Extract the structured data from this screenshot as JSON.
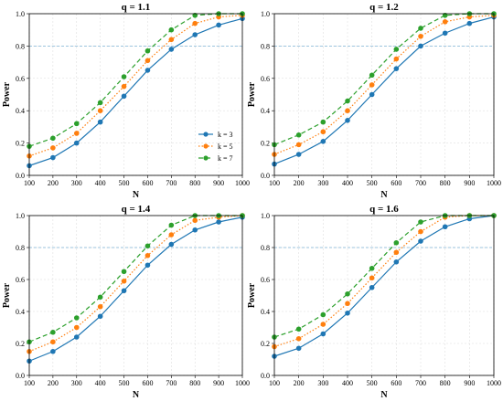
{
  "chart_data": [
    {
      "type": "line",
      "title": "q = 1.1",
      "xlabel": "N",
      "ylabel": "Power",
      "x": [
        100,
        200,
        300,
        400,
        500,
        600,
        700,
        800,
        900,
        1000
      ],
      "xlim": [
        100,
        1000
      ],
      "ylim": [
        0,
        1.0
      ],
      "xticks": [
        "100",
        "200",
        "300",
        "400",
        "500",
        "600",
        "700",
        "800",
        "900",
        "1000"
      ],
      "yticks": [
        "0.0",
        "0.2",
        "0.4",
        "0.6",
        "0.8",
        "1.0"
      ],
      "reference_line": 0.8,
      "grid": true,
      "legend": "inside-right",
      "series": [
        {
          "name": "k = 3",
          "values": [
            0.06,
            0.11,
            0.2,
            0.33,
            0.49,
            0.65,
            0.78,
            0.87,
            0.93,
            0.97
          ]
        },
        {
          "name": "k = 5",
          "values": [
            0.12,
            0.17,
            0.26,
            0.4,
            0.55,
            0.71,
            0.84,
            0.94,
            0.98,
            0.99
          ]
        },
        {
          "name": "k = 7",
          "values": [
            0.18,
            0.23,
            0.32,
            0.45,
            0.61,
            0.77,
            0.9,
            0.99,
            1.0,
            1.0
          ]
        }
      ]
    },
    {
      "type": "line",
      "title": "q = 1.2",
      "xlabel": "N",
      "ylabel": "Power",
      "x": [
        100,
        200,
        300,
        400,
        500,
        600,
        700,
        800,
        900,
        1000
      ],
      "xlim": [
        100,
        1000
      ],
      "ylim": [
        0,
        1.0
      ],
      "xticks": [
        "100",
        "200",
        "300",
        "400",
        "500",
        "600",
        "700",
        "800",
        "900",
        "1000"
      ],
      "yticks": [
        "0.0",
        "0.2",
        "0.4",
        "0.6",
        "0.8",
        "1.0"
      ],
      "reference_line": 0.8,
      "grid": true,
      "series": [
        {
          "name": "k = 3",
          "values": [
            0.07,
            0.13,
            0.21,
            0.34,
            0.5,
            0.66,
            0.8,
            0.88,
            0.94,
            0.98
          ]
        },
        {
          "name": "k = 5",
          "values": [
            0.13,
            0.19,
            0.27,
            0.4,
            0.56,
            0.72,
            0.86,
            0.95,
            0.98,
            0.99
          ]
        },
        {
          "name": "k = 7",
          "values": [
            0.19,
            0.25,
            0.33,
            0.46,
            0.62,
            0.78,
            0.91,
            0.99,
            1.0,
            1.0
          ]
        }
      ]
    },
    {
      "type": "line",
      "title": "q = 1.4",
      "xlabel": "N",
      "ylabel": "Power",
      "x": [
        100,
        200,
        300,
        400,
        500,
        600,
        700,
        800,
        900,
        1000
      ],
      "xlim": [
        100,
        1000
      ],
      "ylim": [
        0,
        1.0
      ],
      "xticks": [
        "100",
        "200",
        "300",
        "400",
        "500",
        "600",
        "700",
        "800",
        "900",
        "1000"
      ],
      "yticks": [
        "0.0",
        "0.2",
        "0.4",
        "0.6",
        "0.8",
        "1.0"
      ],
      "reference_line": 0.8,
      "grid": true,
      "series": [
        {
          "name": "k = 3",
          "values": [
            0.09,
            0.15,
            0.24,
            0.37,
            0.53,
            0.69,
            0.82,
            0.91,
            0.96,
            0.99
          ]
        },
        {
          "name": "k = 5",
          "values": [
            0.15,
            0.21,
            0.3,
            0.43,
            0.59,
            0.75,
            0.88,
            0.97,
            0.99,
            1.0
          ]
        },
        {
          "name": "k = 7",
          "values": [
            0.21,
            0.27,
            0.36,
            0.49,
            0.65,
            0.81,
            0.94,
            1.0,
            1.0,
            1.0
          ]
        }
      ]
    },
    {
      "type": "line",
      "title": "q = 1.6",
      "xlabel": "N",
      "ylabel": "Power",
      "x": [
        100,
        200,
        300,
        400,
        500,
        600,
        700,
        800,
        900,
        1000
      ],
      "xlim": [
        100,
        1000
      ],
      "ylim": [
        0,
        1.0
      ],
      "xticks": [
        "100",
        "200",
        "300",
        "400",
        "500",
        "600",
        "700",
        "800",
        "900",
        "1000"
      ],
      "yticks": [
        "0.0",
        "0.2",
        "0.4",
        "0.6",
        "0.8",
        "1.0"
      ],
      "reference_line": 0.8,
      "grid": true,
      "series": [
        {
          "name": "k = 3",
          "values": [
            0.12,
            0.17,
            0.26,
            0.39,
            0.55,
            0.71,
            0.84,
            0.93,
            0.98,
            1.0
          ]
        },
        {
          "name": "k = 5",
          "values": [
            0.18,
            0.23,
            0.32,
            0.45,
            0.61,
            0.77,
            0.9,
            0.99,
            1.0,
            1.0
          ]
        },
        {
          "name": "k = 7",
          "values": [
            0.24,
            0.29,
            0.38,
            0.51,
            0.67,
            0.83,
            0.96,
            1.0,
            1.0,
            1.0
          ]
        }
      ]
    }
  ],
  "style": {
    "series_colors": [
      "#1f77b4",
      "#ff7f0e",
      "#2ca02c"
    ],
    "series_dash": [
      "",
      "1.5 2",
      "5 3"
    ],
    "reference_color": "#7fb3d5",
    "grid_color": "#d9d9d9"
  }
}
